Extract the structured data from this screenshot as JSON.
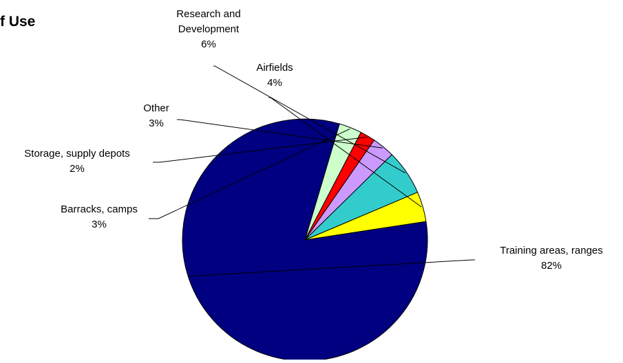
{
  "chart_data": {
    "type": "pie",
    "title": "f Use",
    "slices": [
      {
        "label": "Training areas, ranges",
        "value": 82,
        "pct_label": "82%",
        "color": "#000080"
      },
      {
        "label": "Barracks, camps",
        "value": 3,
        "pct_label": "3%",
        "color": "#CCFFCC"
      },
      {
        "label": "Storage, supply depots",
        "value": 2,
        "pct_label": "2%",
        "color": "#FF0000"
      },
      {
        "label": "Other",
        "value": 3,
        "pct_label": "3%",
        "color": "#CC99FF"
      },
      {
        "label": "Research and Development",
        "label_lines": [
          "Research and",
          "Development"
        ],
        "value": 6,
        "pct_label": "6%",
        "color": "#33CCCC"
      },
      {
        "label": "Airfields",
        "value": 4,
        "pct_label": "4%",
        "color": "#FFFF00"
      }
    ]
  }
}
